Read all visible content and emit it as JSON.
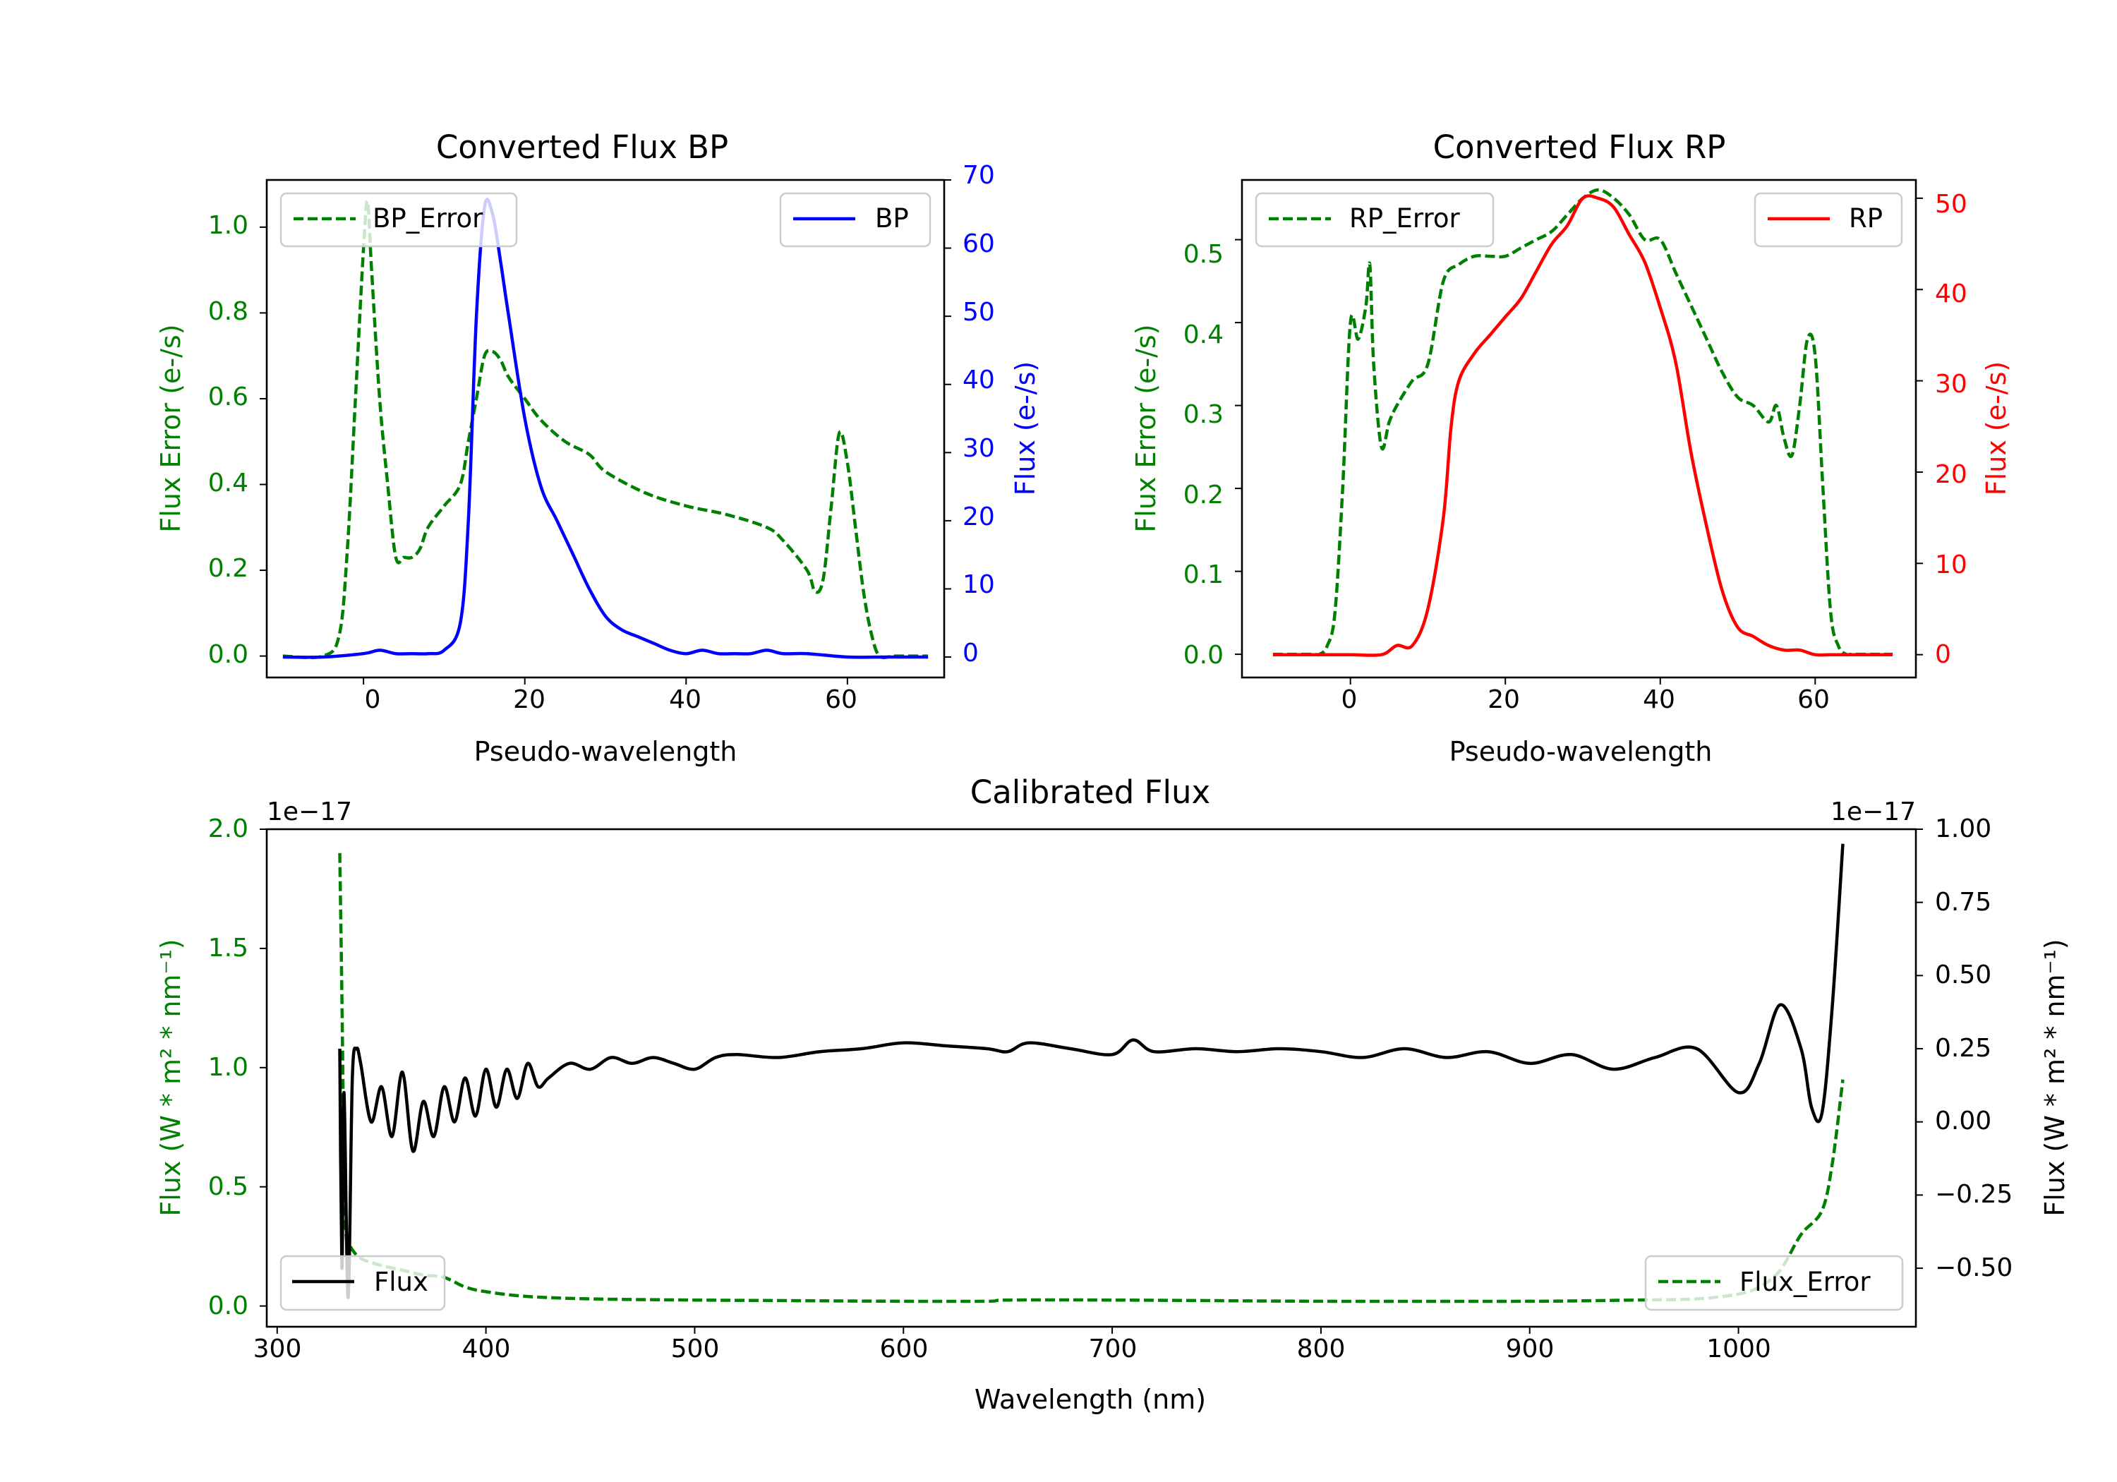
{
  "chart_data": [
    {
      "type": "line",
      "title": "Converted Flux BP",
      "xlabel": "Pseudo-wavelength",
      "ylabel_left": "Flux Error (e-/s)",
      "ylabel_right": "Flux (e-/s)",
      "xlim": [
        -12,
        72
      ],
      "ylim_left": [
        -0.05,
        1.11
      ],
      "ylim_right": [
        -3,
        70
      ],
      "xticks": [
        0,
        20,
        40,
        60
      ],
      "yticks_left": [
        0.0,
        0.2,
        0.4,
        0.6,
        0.8,
        1.0
      ],
      "yticks_right": [
        0,
        10,
        20,
        30,
        40,
        50,
        60,
        70
      ],
      "xtick_labels": [
        "0",
        "20",
        "40",
        "60"
      ],
      "ytick_labels_left": [
        "0.0",
        "0.2",
        "0.4",
        "0.6",
        "0.8",
        "1.0"
      ],
      "ytick_labels_right": [
        "0",
        "10",
        "20",
        "30",
        "40",
        "50",
        "60",
        "70"
      ],
      "legend_left": {
        "label": "BP_Error",
        "placement": "upper-left"
      },
      "legend_right": {
        "label": "BP",
        "placement": "upper-right"
      },
      "series": [
        {
          "name": "BP_Error",
          "axis": "left",
          "style": "dashed",
          "color": "#008000",
          "x": [
            -10,
            -5,
            -3,
            -2,
            -1,
            0,
            0.5,
            1,
            2,
            3,
            4,
            5,
            6,
            7,
            8,
            10,
            12,
            13,
            14,
            15,
            16,
            17,
            18,
            20,
            22,
            25,
            28,
            30,
            35,
            40,
            45,
            50,
            52,
            55,
            56,
            57,
            58,
            59,
            60,
            61,
            62,
            63,
            64,
            66,
            70
          ],
          "y": [
            0.0,
            0.0,
            0.05,
            0.25,
            0.6,
            0.95,
            1.06,
            0.9,
            0.6,
            0.4,
            0.23,
            0.23,
            0.23,
            0.25,
            0.3,
            0.35,
            0.4,
            0.5,
            0.6,
            0.7,
            0.71,
            0.69,
            0.65,
            0.6,
            0.55,
            0.5,
            0.47,
            0.43,
            0.38,
            0.35,
            0.33,
            0.3,
            0.27,
            0.2,
            0.15,
            0.18,
            0.35,
            0.52,
            0.45,
            0.3,
            0.15,
            0.05,
            0.0,
            0.0,
            0.0
          ]
        },
        {
          "name": "BP",
          "axis": "right",
          "style": "solid",
          "color": "#0000ff",
          "x": [
            -10,
            -5,
            0,
            2,
            4,
            6,
            8,
            10,
            12,
            13,
            14,
            15,
            16,
            17,
            18,
            20,
            22,
            24,
            26,
            28,
            30,
            32,
            34,
            36,
            38,
            40,
            42,
            44,
            46,
            48,
            50,
            52,
            55,
            60,
            65,
            70
          ],
          "y": [
            0,
            0,
            0.5,
            1,
            0.5,
            0.5,
            0.5,
            1,
            5,
            20,
            50,
            66,
            65,
            58,
            50,
            35,
            25,
            20,
            15,
            10,
            6,
            4,
            3,
            2,
            1,
            0.5,
            1,
            0.5,
            0.5,
            0.5,
            1,
            0.5,
            0.5,
            0,
            0,
            0
          ]
        }
      ]
    },
    {
      "type": "line",
      "title": "Converted Flux RP",
      "xlabel": "Pseudo-wavelength",
      "ylabel_left": "Flux Error (e-/s)",
      "ylabel_right": "Flux (e-/s)",
      "xlim": [
        -14,
        73
      ],
      "ylim_left": [
        -0.028,
        0.572
      ],
      "ylim_right": [
        -2.5,
        52
      ],
      "xticks": [
        0,
        20,
        40,
        60
      ],
      "yticks_left": [
        0.0,
        0.1,
        0.2,
        0.3,
        0.4,
        0.5
      ],
      "yticks_right": [
        0,
        10,
        20,
        30,
        40,
        50
      ],
      "xtick_labels": [
        "0",
        "20",
        "40",
        "60"
      ],
      "ytick_labels_left": [
        "0.0",
        "0.1",
        "0.2",
        "0.3",
        "0.4",
        "0.5"
      ],
      "ytick_labels_right": [
        "0",
        "10",
        "20",
        "30",
        "40",
        "50"
      ],
      "legend_left": {
        "label": "RP_Error",
        "placement": "upper-left"
      },
      "legend_right": {
        "label": "RP",
        "placement": "upper-right"
      },
      "series": [
        {
          "name": "RP_Error",
          "axis": "left",
          "style": "dashed",
          "color": "#008000",
          "x": [
            -10,
            -5,
            -4,
            -3,
            -2,
            -1,
            0,
            1,
            2,
            2.5,
            3,
            4,
            5,
            6,
            8,
            10,
            12,
            14,
            16,
            18,
            20,
            22,
            24,
            26,
            28,
            30,
            32,
            34,
            36,
            38,
            40,
            42,
            44,
            46,
            48,
            50,
            52,
            54,
            55,
            56,
            57,
            58,
            59,
            60,
            61,
            62,
            63,
            64,
            65,
            70
          ],
          "y": [
            0.0,
            0.0,
            0.0,
            0.01,
            0.05,
            0.2,
            0.4,
            0.38,
            0.42,
            0.47,
            0.35,
            0.25,
            0.28,
            0.3,
            0.33,
            0.35,
            0.45,
            0.47,
            0.48,
            0.48,
            0.48,
            0.49,
            0.5,
            0.51,
            0.53,
            0.55,
            0.56,
            0.55,
            0.53,
            0.5,
            0.5,
            0.46,
            0.42,
            0.38,
            0.34,
            0.31,
            0.3,
            0.28,
            0.3,
            0.26,
            0.24,
            0.3,
            0.38,
            0.36,
            0.2,
            0.05,
            0.01,
            0.0,
            0.0,
            0.0
          ]
        },
        {
          "name": "RP",
          "axis": "right",
          "style": "solid",
          "color": "#ff0000",
          "x": [
            -10,
            -5,
            0,
            4,
            6,
            8,
            10,
            12,
            13,
            14,
            16,
            18,
            20,
            22,
            24,
            26,
            28,
            30,
            32,
            34,
            36,
            38,
            40,
            42,
            44,
            46,
            48,
            50,
            52,
            54,
            56,
            58,
            60,
            62,
            66,
            70
          ],
          "y": [
            0,
            0,
            0,
            0,
            1,
            1,
            5,
            15,
            25,
            30,
            33,
            35,
            37,
            39,
            42,
            45,
            47,
            50,
            50,
            49,
            46,
            43,
            38,
            32,
            22,
            14,
            7,
            3,
            2,
            1,
            0.5,
            0.5,
            0,
            0,
            0,
            0
          ]
        }
      ]
    },
    {
      "type": "line",
      "title": "Calibrated Flux",
      "xlabel": "Wavelength (nm)",
      "ylabel_left": "Flux (W * m² * nm⁻¹)",
      "ylabel_right": "Flux (W * m² * nm⁻¹)",
      "left_offset_label": "1e−17",
      "right_offset_label": "1e−17",
      "xlim": [
        295,
        1085
      ],
      "ylim_left": [
        -0.087,
        2.0
      ],
      "ylim_right": [
        -0.7,
        1.0
      ],
      "xticks": [
        300,
        400,
        500,
        600,
        700,
        800,
        900,
        1000
      ],
      "yticks_left": [
        0.0,
        0.5,
        1.0,
        1.5,
        2.0
      ],
      "yticks_right": [
        -0.5,
        -0.25,
        0.0,
        0.25,
        0.5,
        0.75,
        1.0
      ],
      "xtick_labels": [
        "300",
        "400",
        "500",
        "600",
        "700",
        "800",
        "900",
        "1000"
      ],
      "ytick_labels_left": [
        "0.0",
        "0.5",
        "1.0",
        "1.5",
        "2.0"
      ],
      "ytick_labels_right": [
        "−0.50",
        "−0.25",
        "0.00",
        "0.25",
        "0.50",
        "0.75",
        "1.00"
      ],
      "legend_left": {
        "label": "Flux",
        "placement": "lower-left"
      },
      "legend_right": {
        "label": "Flux_Error",
        "placement": "lower-right"
      },
      "series": [
        {
          "name": "Flux_Error",
          "axis": "left",
          "style": "dashed",
          "color": "#008000",
          "x": [
            330,
            331,
            332,
            333,
            335,
            340,
            350,
            360,
            370,
            380,
            390,
            400,
            420,
            450,
            500,
            600,
            640,
            650,
            700,
            800,
            900,
            950,
            980,
            1000,
            1010,
            1020,
            1030,
            1040,
            1045,
            1050
          ],
          "y": [
            1.9,
            1.3,
            0.6,
            0.3,
            0.25,
            0.2,
            0.17,
            0.15,
            0.13,
            0.12,
            0.08,
            0.06,
            0.04,
            0.03,
            0.025,
            0.02,
            0.02,
            0.025,
            0.025,
            0.02,
            0.02,
            0.025,
            0.03,
            0.05,
            0.08,
            0.15,
            0.3,
            0.4,
            0.6,
            0.95
          ]
        },
        {
          "name": "Flux",
          "axis": "right",
          "style": "solid",
          "color": "#000000",
          "x": [
            330,
            331,
            332,
            334,
            336,
            338,
            340,
            345,
            350,
            355,
            360,
            365,
            370,
            375,
            380,
            385,
            390,
            395,
            400,
            405,
            410,
            415,
            420,
            425,
            430,
            440,
            450,
            460,
            470,
            480,
            490,
            500,
            510,
            520,
            540,
            560,
            580,
            600,
            620,
            640,
            650,
            660,
            680,
            700,
            710,
            720,
            740,
            760,
            780,
            800,
            820,
            840,
            860,
            880,
            900,
            920,
            940,
            960,
            980,
            1000,
            1010,
            1020,
            1030,
            1035,
            1040,
            1045,
            1050
          ],
          "y": [
            0.25,
            -0.5,
            0.1,
            -0.6,
            0.15,
            0.25,
            0.2,
            0.0,
            0.12,
            -0.05,
            0.17,
            -0.1,
            0.07,
            -0.05,
            0.12,
            0.0,
            0.15,
            0.02,
            0.18,
            0.05,
            0.18,
            0.08,
            0.2,
            0.12,
            0.15,
            0.2,
            0.18,
            0.22,
            0.2,
            0.22,
            0.2,
            0.18,
            0.22,
            0.23,
            0.22,
            0.24,
            0.25,
            0.27,
            0.26,
            0.25,
            0.24,
            0.27,
            0.25,
            0.23,
            0.28,
            0.24,
            0.25,
            0.24,
            0.25,
            0.24,
            0.22,
            0.25,
            0.22,
            0.24,
            0.2,
            0.23,
            0.18,
            0.22,
            0.25,
            0.1,
            0.2,
            0.4,
            0.25,
            0.05,
            0.03,
            0.4,
            0.95
          ]
        }
      ]
    }
  ]
}
